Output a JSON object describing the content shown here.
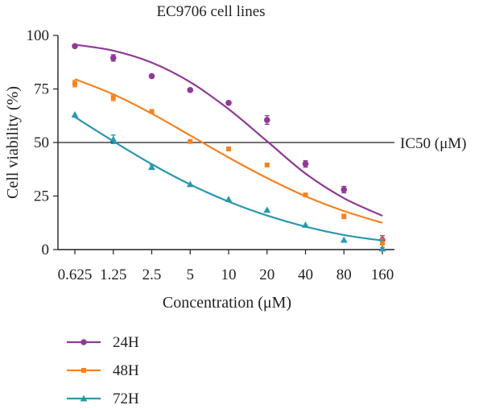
{
  "chart_data": {
    "type": "scatter",
    "title": "EC9706 cell lines",
    "xlabel": "Concentration (μM)",
    "ylabel": "Cell viability (%)",
    "x_scale": "log2",
    "x_ticks": [
      "0.625",
      "1.25",
      "2.5",
      "5",
      "10",
      "20",
      "40",
      "80",
      "160"
    ],
    "x_values": [
      0.625,
      1.25,
      2.5,
      5,
      10,
      20,
      40,
      80,
      160
    ],
    "ylim": [
      0,
      100
    ],
    "y_ticks": [
      "0",
      "25",
      "50",
      "75",
      "100"
    ],
    "reference_line": {
      "y": 50,
      "label": "IC50 (μM)"
    },
    "legend_position": "bottom-left",
    "series": [
      {
        "name": "24H",
        "color": "#8e3a96",
        "marker": "circle",
        "values": [
          95,
          89.5,
          81,
          74.5,
          68.5,
          60.5,
          40,
          28,
          4.5
        ],
        "errors": [
          0.8,
          1.5,
          0.8,
          0.8,
          0.8,
          2,
          1.5,
          1.5,
          2
        ],
        "fit": [
          95.7,
          92.9,
          87.3,
          78.2,
          65.6,
          50.6,
          35.5,
          24.0,
          15.8
        ]
      },
      {
        "name": "48H",
        "color": "#f58220",
        "marker": "square",
        "values": [
          77.5,
          71,
          64.5,
          50.5,
          47,
          39.5,
          25.5,
          15.5,
          3
        ],
        "errors": [
          1.5,
          1.5,
          0.8,
          0.8,
          0.5,
          0.5,
          0.8,
          1,
          2
        ],
        "fit": [
          79.6,
          72.5,
          63.5,
          53.3,
          43.0,
          33.4,
          24.9,
          18.0,
          12.5
        ]
      },
      {
        "name": "72H",
        "color": "#2a98ae",
        "marker": "triangle",
        "values": [
          63,
          51.5,
          38.5,
          30.5,
          23.5,
          18.5,
          11.5,
          4.5,
          0.5
        ],
        "errors": [
          0.5,
          2,
          1,
          0.5,
          0.5,
          0.5,
          0.5,
          0.5,
          0.5
        ],
        "fit": [
          61.9,
          50.6,
          39.9,
          30.4,
          22.4,
          15.9,
          10.7,
          6.8,
          4.2
        ]
      }
    ]
  }
}
